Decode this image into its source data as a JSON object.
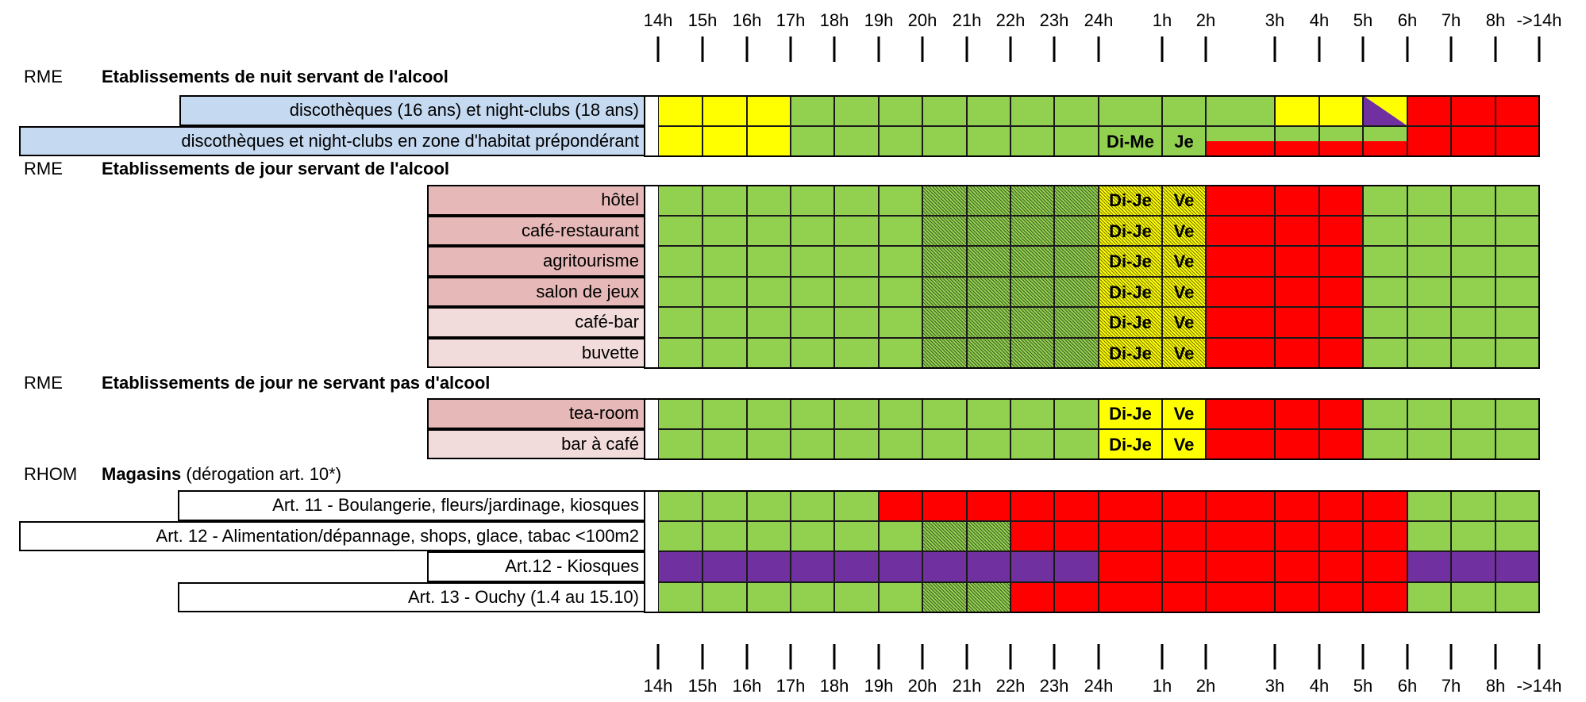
{
  "colors": {
    "green": "#92d050",
    "yellow": "#ffff00",
    "red": "#ff0000",
    "purple": "#7030a0",
    "blue_label": "#c5d9f1",
    "rose_label": "#e6b8b7",
    "pink_label": "#f2dcdb",
    "white_label": "#ffffff"
  },
  "chart_data": {
    "type": "table",
    "hours": [
      "14h",
      "15h",
      "16h",
      "17h",
      "18h",
      "19h",
      "20h",
      "21h",
      "22h",
      "23h",
      "24h",
      "1h",
      "2h",
      "3h",
      "4h",
      "5h",
      "6h",
      "7h",
      "8h",
      "->14h"
    ],
    "groups": [
      {
        "code": "RME",
        "title": "Etablissements de nuit servant de l'alcool",
        "note": "",
        "rows": [
          {
            "label": "discothèques (16 ans) et night-clubs (18 ans)",
            "label_color": "blue_label",
            "cells": [
              "yellow",
              "yellow",
              "yellow",
              "green",
              "green",
              "green",
              "green",
              "green",
              "green",
              "green",
              "green",
              "green",
              "green",
              "yellow",
              "yellow",
              "purple/yellow",
              "red",
              "red",
              "red"
            ]
          },
          {
            "label": "discothèques et night-clubs en zone d'habitat prépondérant",
            "label_color": "blue_label",
            "cells": [
              "yellow",
              "yellow",
              "yellow",
              "green",
              "green",
              "green",
              "green",
              "green",
              "green",
              "green",
              "green",
              "green",
              "green/red",
              "green/red",
              "green/red",
              "green/red",
              "red",
              "red",
              "red"
            ],
            "marks": {
              "10": "Di-Me",
              "11": "Je"
            }
          }
        ]
      },
      {
        "code": "RME",
        "title": "Etablissements de jour servant de l'alcool",
        "note": "",
        "rows": [
          {
            "label": "hôtel",
            "label_color": "rose_label",
            "cells": [
              "green",
              "green",
              "green",
              "green",
              "green",
              "green",
              "green-hatched",
              "green-hatched",
              "green-hatched",
              "green-hatched",
              "yellow-hatched",
              "yellow-hatched",
              "red",
              "red",
              "red",
              "green",
              "green",
              "green",
              "green"
            ],
            "marks": {
              "10": "Di-Je",
              "11": "Ve"
            }
          },
          {
            "label": "café-restaurant",
            "label_color": "rose_label",
            "cells": [
              "green",
              "green",
              "green",
              "green",
              "green",
              "green",
              "green-hatched",
              "green-hatched",
              "green-hatched",
              "green-hatched",
              "yellow-hatched",
              "yellow-hatched",
              "red",
              "red",
              "red",
              "green",
              "green",
              "green",
              "green"
            ],
            "marks": {
              "10": "Di-Je",
              "11": "Ve"
            }
          },
          {
            "label": "agritourisme",
            "label_color": "rose_label",
            "cells": [
              "green",
              "green",
              "green",
              "green",
              "green",
              "green",
              "green-hatched",
              "green-hatched",
              "green-hatched",
              "green-hatched",
              "yellow-hatched",
              "yellow-hatched",
              "red",
              "red",
              "red",
              "green",
              "green",
              "green",
              "green"
            ],
            "marks": {
              "10": "Di-Je",
              "11": "Ve"
            }
          },
          {
            "label": "salon de jeux",
            "label_color": "rose_label",
            "cells": [
              "green",
              "green",
              "green",
              "green",
              "green",
              "green",
              "green-hatched",
              "green-hatched",
              "green-hatched",
              "green-hatched",
              "yellow-hatched",
              "yellow-hatched",
              "red",
              "red",
              "red",
              "green",
              "green",
              "green",
              "green"
            ],
            "marks": {
              "10": "Di-Je",
              "11": "Ve"
            }
          },
          {
            "label": "café-bar",
            "label_color": "pink_label",
            "cells": [
              "green",
              "green",
              "green",
              "green",
              "green",
              "green",
              "green-hatched",
              "green-hatched",
              "green-hatched",
              "green-hatched",
              "yellow-hatched",
              "yellow-hatched",
              "red",
              "red",
              "red",
              "green",
              "green",
              "green",
              "green"
            ],
            "marks": {
              "10": "Di-Je",
              "11": "Ve"
            }
          },
          {
            "label": "buvette",
            "label_color": "pink_label",
            "cells": [
              "green",
              "green",
              "green",
              "green",
              "green",
              "green",
              "green-hatched",
              "green-hatched",
              "green-hatched",
              "green-hatched",
              "yellow-hatched",
              "yellow-hatched",
              "red",
              "red",
              "red",
              "green",
              "green",
              "green",
              "green"
            ],
            "marks": {
              "10": "Di-Je",
              "11": "Ve"
            }
          }
        ]
      },
      {
        "code": "RME",
        "title": "Etablissements de jour ne servant pas d'alcool",
        "note": "",
        "rows": [
          {
            "label": "tea-room",
            "label_color": "rose_label",
            "cells": [
              "green",
              "green",
              "green",
              "green",
              "green",
              "green",
              "green",
              "green",
              "green",
              "green",
              "yellow",
              "yellow",
              "red",
              "red",
              "red",
              "green",
              "green",
              "green",
              "green"
            ],
            "marks": {
              "10": "Di-Je",
              "11": "Ve"
            }
          },
          {
            "label": "bar à café",
            "label_color": "pink_label",
            "cells": [
              "green",
              "green",
              "green",
              "green",
              "green",
              "green",
              "green",
              "green",
              "green",
              "green",
              "yellow",
              "yellow",
              "red",
              "red",
              "red",
              "green",
              "green",
              "green",
              "green"
            ],
            "marks": {
              "10": "Di-Je",
              "11": "Ve"
            }
          }
        ]
      },
      {
        "code": "RHOM",
        "title": "Magasins",
        "note": "(dérogation art. 10*)",
        "rows": [
          {
            "label": "Art. 11 - Boulangerie, fleurs/jardinage, kiosques",
            "label_color": "white_label",
            "cells": [
              "green",
              "green",
              "green",
              "green",
              "green",
              "red",
              "red",
              "red",
              "red",
              "red",
              "red",
              "red",
              "red",
              "red",
              "red",
              "red",
              "green",
              "green",
              "green"
            ]
          },
          {
            "label": "Art. 12 - Alimentation/dépannage, shops, glace, tabac <100m2",
            "label_color": "white_label",
            "cells": [
              "green",
              "green",
              "green",
              "green",
              "green",
              "green",
              "green-hatched",
              "green-hatched",
              "red",
              "red",
              "red",
              "red",
              "red",
              "red",
              "red",
              "red",
              "green",
              "green",
              "green"
            ]
          },
          {
            "label": "Art.12 - Kiosques",
            "label_color": "white_label",
            "cells": [
              "purple",
              "purple",
              "purple",
              "purple",
              "purple",
              "purple",
              "purple",
              "purple",
              "purple",
              "purple",
              "red",
              "red",
              "red",
              "red",
              "red",
              "red",
              "purple",
              "purple",
              "purple"
            ]
          },
          {
            "label": "Art. 13 - Ouchy (1.4 au 15.10)",
            "label_color": "white_label",
            "cells": [
              "green",
              "green",
              "green",
              "green",
              "green",
              "green",
              "green-hatched",
              "green-hatched",
              "red",
              "red",
              "red",
              "red",
              "red",
              "red",
              "red",
              "red",
              "green",
              "green",
              "green"
            ]
          }
        ]
      }
    ]
  }
}
